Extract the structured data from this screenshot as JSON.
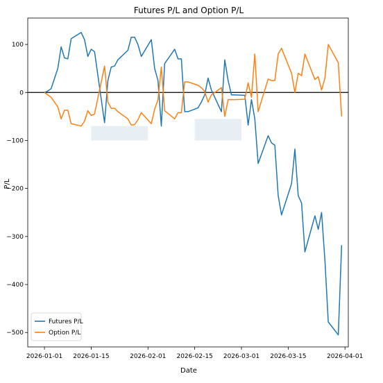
{
  "chart_data": {
    "type": "line",
    "title": "Futures P/L and Option P/L",
    "xlabel": "Date",
    "ylabel": "P/L",
    "xlim": [
      "2025-12-27",
      "2026-04-02"
    ],
    "ylim": [
      -530,
      155
    ],
    "grid": false,
    "legend_position": "lower left",
    "x_ticks": [
      "2026-01-01",
      "2026-01-15",
      "2026-02-01",
      "2026-02-15",
      "2026-03-01",
      "2026-03-15",
      "2026-04-01"
    ],
    "y_ticks": [
      100,
      0,
      -100,
      -200,
      -300,
      -400,
      -500
    ],
    "y_tick_labels": [
      "100",
      "0",
      "−100",
      "−200",
      "−300",
      "−400",
      "−500"
    ],
    "zero_line": {
      "y": 0,
      "color": "#000000"
    },
    "shaded_regions": [
      {
        "x0": "2026-01-15",
        "x1": "2026-02-01",
        "y0": -100,
        "y1": -70,
        "color": "#dde8f0"
      },
      {
        "x0": "2026-02-15",
        "x1": "2026-03-01",
        "y0": -100,
        "y1": -55,
        "color": "#dde8f0"
      }
    ],
    "series": [
      {
        "name": "Futures P/L",
        "color": "#1f77b4",
        "x": [
          "2026-01-01",
          "2026-01-02",
          "2026-01-03",
          "2026-01-05",
          "2026-01-06",
          "2026-01-07",
          "2026-01-08",
          "2026-01-09",
          "2026-01-12",
          "2026-01-13",
          "2026-01-14",
          "2026-01-15",
          "2026-01-16",
          "2026-01-19",
          "2026-01-20",
          "2026-01-21",
          "2026-01-22",
          "2026-01-23",
          "2026-01-26",
          "2026-01-27",
          "2026-01-28",
          "2026-01-29",
          "2026-01-30",
          "2026-02-02",
          "2026-02-03",
          "2026-02-04",
          "2026-02-05",
          "2026-02-06",
          "2026-02-09",
          "2026-02-10",
          "2026-02-11",
          "2026-02-12",
          "2026-02-13",
          "2026-02-16",
          "2026-02-17",
          "2026-02-18",
          "2026-02-19",
          "2026-02-20",
          "2026-02-23",
          "2026-02-24",
          "2026-02-25",
          "2026-02-26",
          "2026-02-27",
          "2026-03-02",
          "2026-03-03",
          "2026-03-04",
          "2026-03-05",
          "2026-03-06",
          "2026-03-09",
          "2026-03-10",
          "2026-03-11",
          "2026-03-12",
          "2026-03-13",
          "2026-03-16",
          "2026-03-17",
          "2026-03-18",
          "2026-03-19",
          "2026-03-20",
          "2026-03-23",
          "2026-03-24",
          "2026-03-25",
          "2026-03-26",
          "2026-03-27",
          "2026-03-30",
          "2026-03-31"
        ],
        "y": [
          0,
          3,
          8,
          50,
          95,
          72,
          70,
          112,
          125,
          110,
          75,
          90,
          85,
          -63,
          25,
          53,
          55,
          68,
          88,
          115,
          115,
          100,
          75,
          110,
          50,
          25,
          -70,
          60,
          90,
          70,
          70,
          -40,
          -40,
          -32,
          -20,
          -5,
          30,
          5,
          -40,
          68,
          25,
          -5,
          -5,
          -6,
          -68,
          -15,
          -55,
          -148,
          -90,
          -105,
          -110,
          -215,
          -255,
          -190,
          -118,
          -215,
          -230,
          -332,
          -257,
          -285,
          -250,
          -350,
          -478,
          -505,
          -318
        ]
      },
      {
        "name": "Option P/L",
        "color": "#ff7f0e",
        "x": [
          "2026-01-01",
          "2026-01-02",
          "2026-01-03",
          "2026-01-05",
          "2026-01-06",
          "2026-01-07",
          "2026-01-08",
          "2026-01-09",
          "2026-01-12",
          "2026-01-13",
          "2026-01-14",
          "2026-01-15",
          "2026-01-16",
          "2026-01-19",
          "2026-01-20",
          "2026-01-21",
          "2026-01-22",
          "2026-01-23",
          "2026-01-26",
          "2026-01-27",
          "2026-01-28",
          "2026-01-29",
          "2026-01-30",
          "2026-02-02",
          "2026-02-03",
          "2026-02-04",
          "2026-02-05",
          "2026-02-06",
          "2026-02-09",
          "2026-02-10",
          "2026-02-11",
          "2026-02-12",
          "2026-02-13",
          "2026-02-16",
          "2026-02-17",
          "2026-02-18",
          "2026-02-19",
          "2026-02-20",
          "2026-02-23",
          "2026-02-24",
          "2026-02-25",
          "2026-02-26",
          "2026-02-27",
          "2026-03-02",
          "2026-03-03",
          "2026-03-04",
          "2026-03-05",
          "2026-03-06",
          "2026-03-09",
          "2026-03-10",
          "2026-03-11",
          "2026-03-12",
          "2026-03-13",
          "2026-03-16",
          "2026-03-17",
          "2026-03-18",
          "2026-03-19",
          "2026-03-20",
          "2026-03-23",
          "2026-03-24",
          "2026-03-25",
          "2026-03-26",
          "2026-03-27",
          "2026-03-30",
          "2026-03-31"
        ],
        "y": [
          0,
          -5,
          -10,
          -30,
          -55,
          -37,
          -37,
          -65,
          -70,
          -60,
          -38,
          -48,
          -45,
          55,
          -20,
          -33,
          -33,
          -40,
          -55,
          -68,
          -67,
          -57,
          -42,
          -65,
          -35,
          -15,
          53,
          -38,
          -55,
          -42,
          -42,
          22,
          22,
          15,
          10,
          2,
          -20,
          -5,
          10,
          -50,
          -15,
          -15,
          -15,
          -14,
          20,
          -10,
          80,
          -40,
          28,
          25,
          25,
          80,
          92,
          40,
          0,
          40,
          35,
          80,
          27,
          33,
          5,
          30,
          100,
          62,
          -50
        ]
      }
    ]
  }
}
